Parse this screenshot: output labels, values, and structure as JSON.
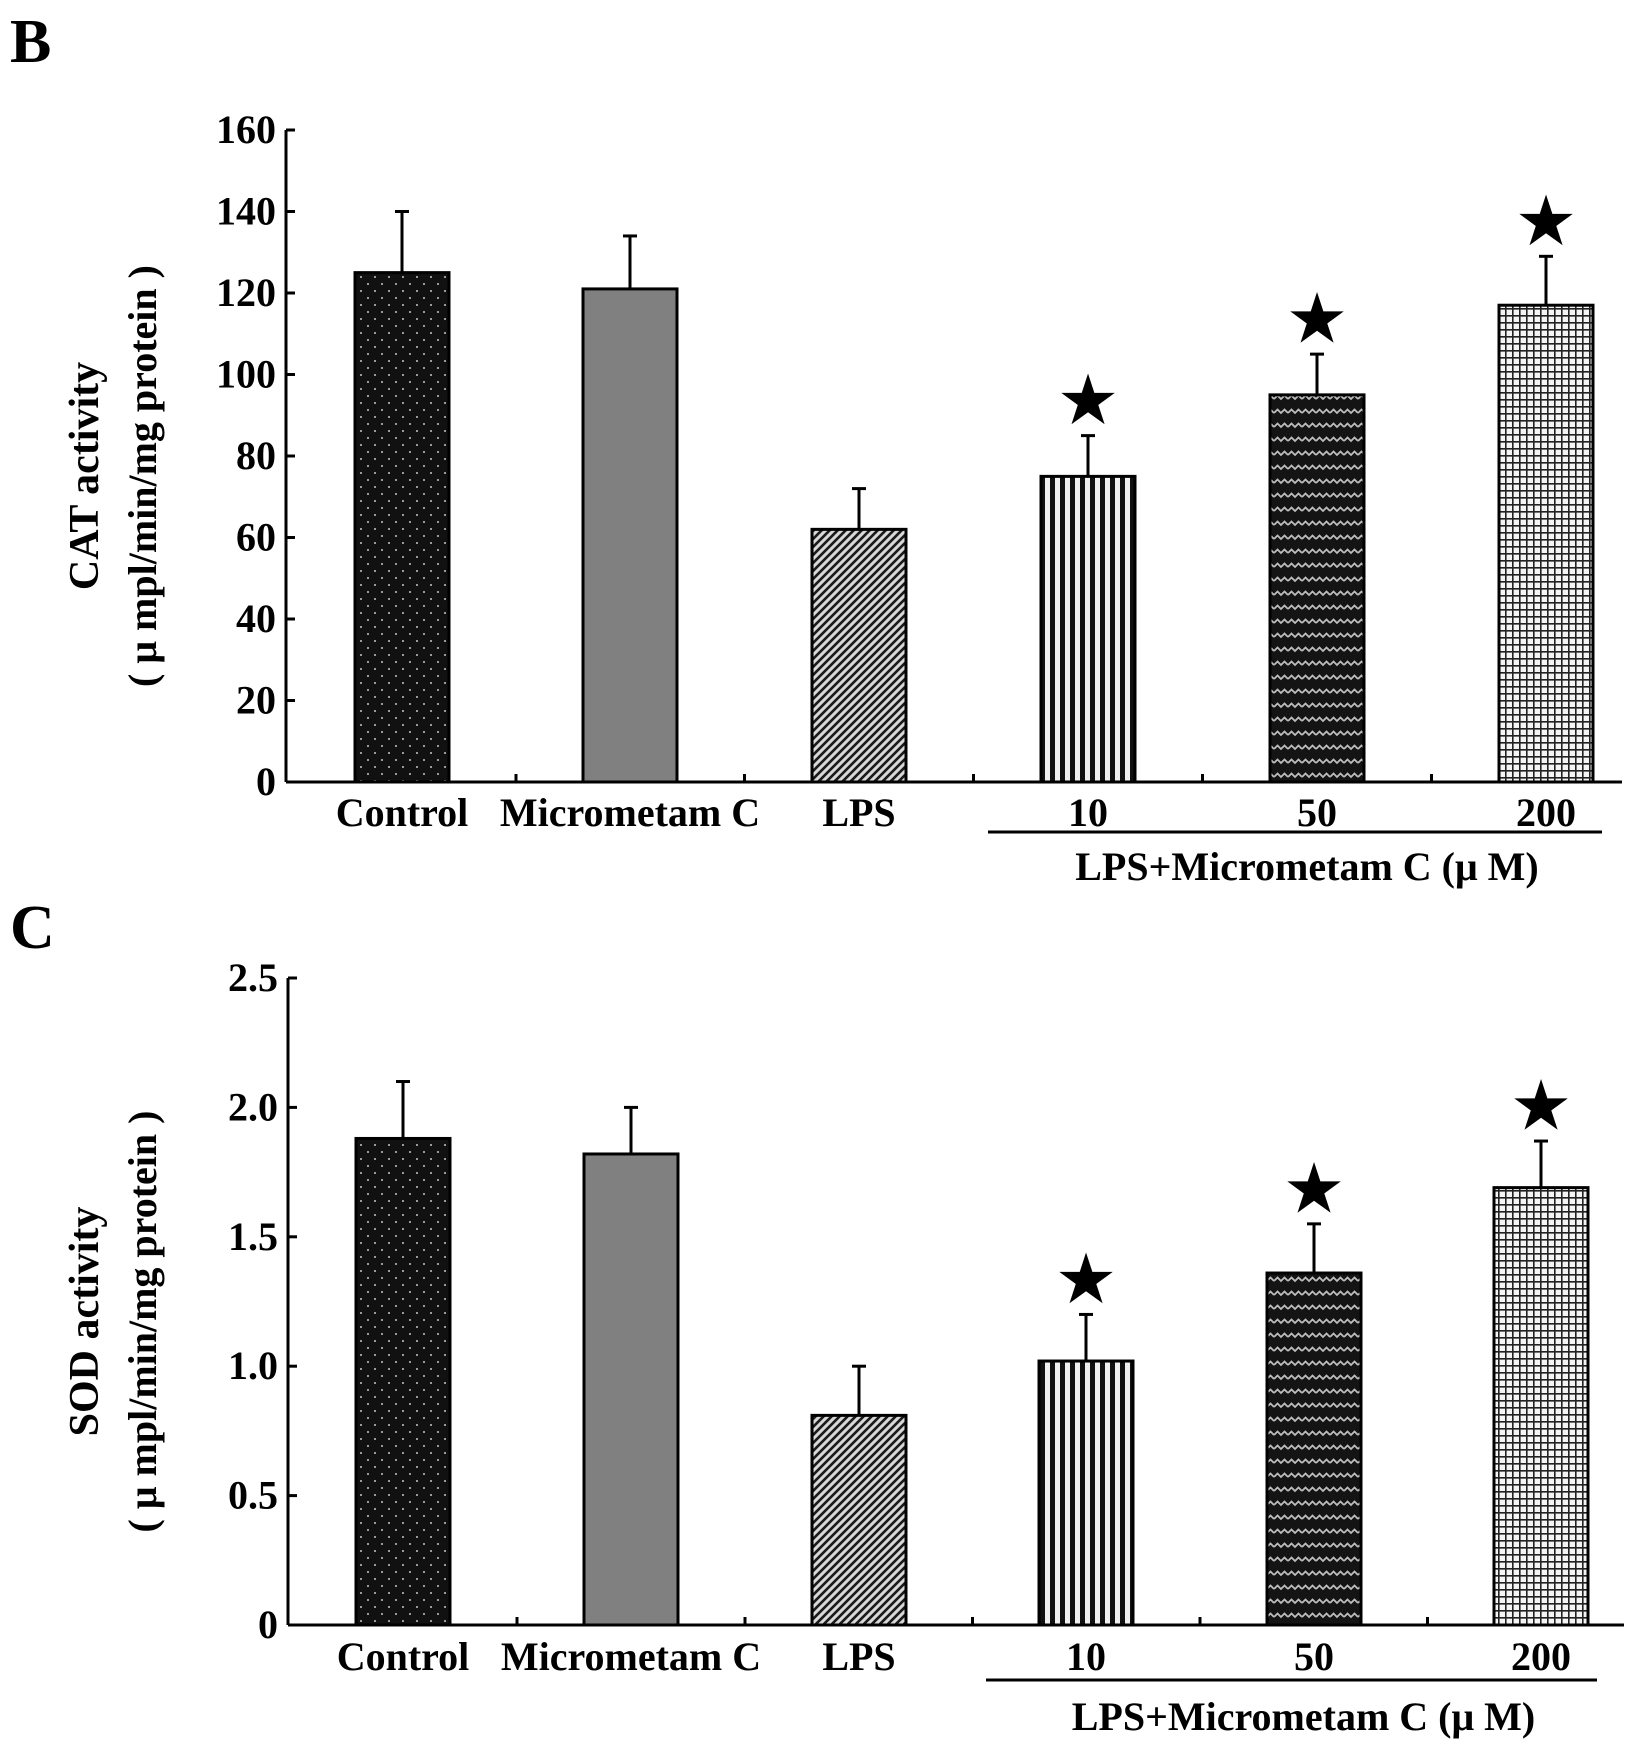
{
  "chart_data": [
    {
      "type": "bar",
      "panel": "B",
      "categories": [
        "Control",
        "Micrometam C",
        "LPS",
        "10",
        "50",
        "200"
      ],
      "values": [
        125,
        121,
        62,
        75,
        95,
        117
      ],
      "errors": [
        15,
        13,
        10,
        10,
        10,
        12
      ],
      "significance": [
        "",
        "",
        "",
        "★",
        "★",
        "★"
      ],
      "ylabel": "CAT activity",
      "ylabel_unit": "( μ mpl/min/mg protein )",
      "group_label": "LPS+Micrometam C (μ M)",
      "ylim": [
        0,
        160
      ],
      "yticks": [
        "0",
        "20",
        "40",
        "60",
        "80",
        "100",
        "120",
        "140",
        "160"
      ],
      "patterns": [
        "dots-dark",
        "solid-gray",
        "diagonal",
        "vertical",
        "zigzag",
        "grid"
      ],
      "colors": {
        "bar_dark": "#111111",
        "bar_gray": "#808080",
        "bar_light": "#f4f4f4",
        "axis": "#000000"
      }
    },
    {
      "type": "bar",
      "panel": "C",
      "categories": [
        "Control",
        "Micrometam C",
        "LPS",
        "10",
        "50",
        "200"
      ],
      "values": [
        1.88,
        1.82,
        0.81,
        1.02,
        1.36,
        1.69
      ],
      "errors": [
        0.22,
        0.18,
        0.19,
        0.18,
        0.19,
        0.18
      ],
      "significance": [
        "",
        "",
        "",
        "★",
        "★",
        "★"
      ],
      "ylabel": "SOD activity",
      "ylabel_unit": "( μ mpl/min/mg protein )",
      "group_label": "LPS+Micrometam C (μ M)",
      "ylim": [
        0,
        2.5
      ],
      "yticks": [
        "0",
        "0.5",
        "1.0",
        "1.5",
        "2.0",
        "2.5"
      ],
      "patterns": [
        "dots-dark",
        "solid-gray",
        "diagonal",
        "vertical",
        "zigzag",
        "grid"
      ],
      "colors": {
        "bar_dark": "#111111",
        "bar_gray": "#808080",
        "bar_light": "#f4f4f4",
        "axis": "#000000"
      }
    }
  ]
}
